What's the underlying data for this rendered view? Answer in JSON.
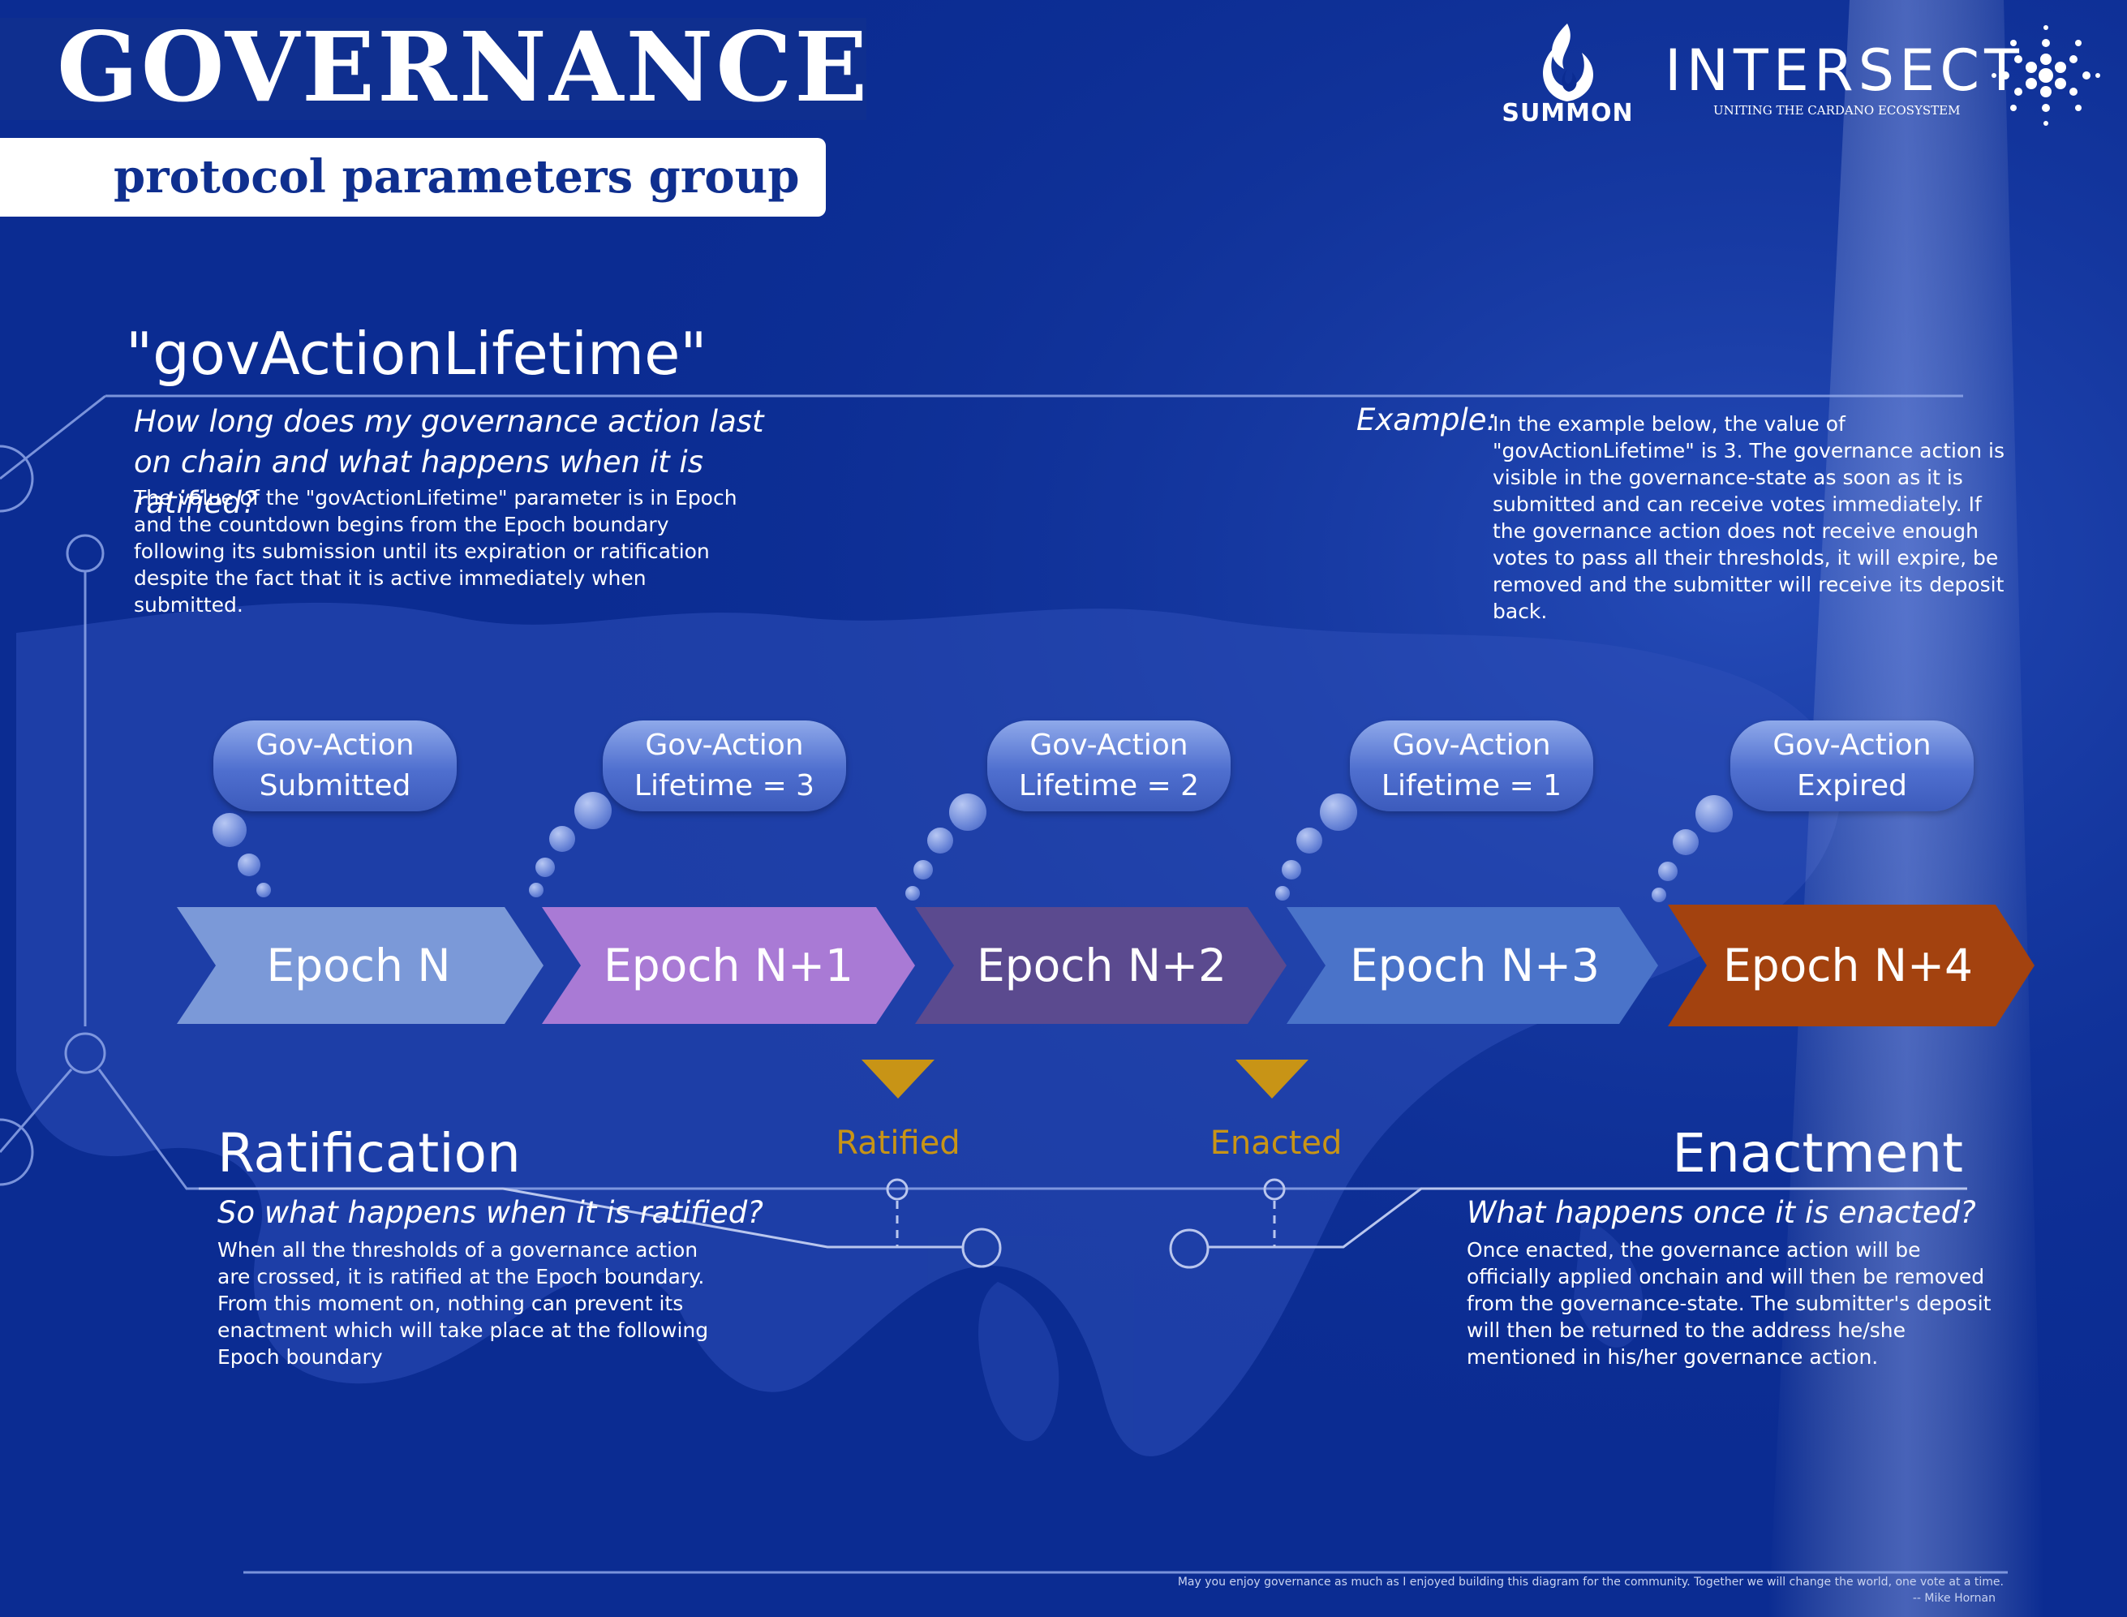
{
  "header": {
    "title": "GOVERNANCE",
    "subtitle": "protocol parameters group"
  },
  "logos": {
    "summon": "SUMMON",
    "intersect": "INTERSECT",
    "intersect_tagline": "UNITING THE CARDANO ECOSYSTEM",
    "summon_icon": "flame-icon",
    "cardano_icon": "cardano-icon"
  },
  "parameter": {
    "name": "\"govActionLifetime\"",
    "question": "How long does my governance action last on chain and what happens when it is ratified?",
    "description": "The value of the \"govActionLifetime\" parameter is in Epoch and the countdown begins from the Epoch boundary following its submission until its expiration or ratification despite the fact that it is active immediately when submitted."
  },
  "example": {
    "label": "Example:",
    "text": "In the example below, the value of \"govActionLifetime\" is 3. The governance action is visible in the governance-state as soon as it is submitted and can receive votes immediately. If the governance action does not receive enough votes to pass all their thresholds, it will expire, be removed and the submitter will receive its deposit back."
  },
  "bubbles": [
    {
      "line1": "Gov-Action",
      "line2": "Submitted"
    },
    {
      "line1": "Gov-Action",
      "line2": "Lifetime = 3"
    },
    {
      "line1": "Gov-Action",
      "line2": "Lifetime = 2"
    },
    {
      "line1": "Gov-Action",
      "line2": "Lifetime = 1"
    },
    {
      "line1": "Gov-Action",
      "line2": "Expired"
    }
  ],
  "epochs": [
    {
      "label": "Epoch N",
      "color": "#7b99d8"
    },
    {
      "label": "Epoch N+1",
      "color": "#a97ad5"
    },
    {
      "label": "Epoch N+2",
      "color": "#5b4a8f"
    },
    {
      "label": "Epoch N+3",
      "color": "#4a73c9"
    },
    {
      "label": "Epoch N+4",
      "color": "#a3420f"
    }
  ],
  "markers": {
    "ratified": "Ratified",
    "enacted": "Enacted",
    "color": "#c89416"
  },
  "ratification": {
    "title": "Ratification",
    "question": "So what happens when it is ratified?",
    "text": "When all the thresholds of a governance action are crossed, it is ratified at the Epoch boundary. From this moment on, nothing can prevent its enactment which will take place at the following Epoch boundary"
  },
  "enactment": {
    "title": "Enactment",
    "question": "What happens once it is enacted?",
    "text": "Once enacted, the governance action will be officially applied onchain and will then be removed from the governance-state. The submitter's deposit will then be returned to the address he/she mentioned in his/her governance action."
  },
  "footer": {
    "quote": "May you enjoy governance as much as I enjoyed building this diagram for the community. Together we will change the world, one vote at a time.",
    "author": "-- Mike Hornan"
  }
}
